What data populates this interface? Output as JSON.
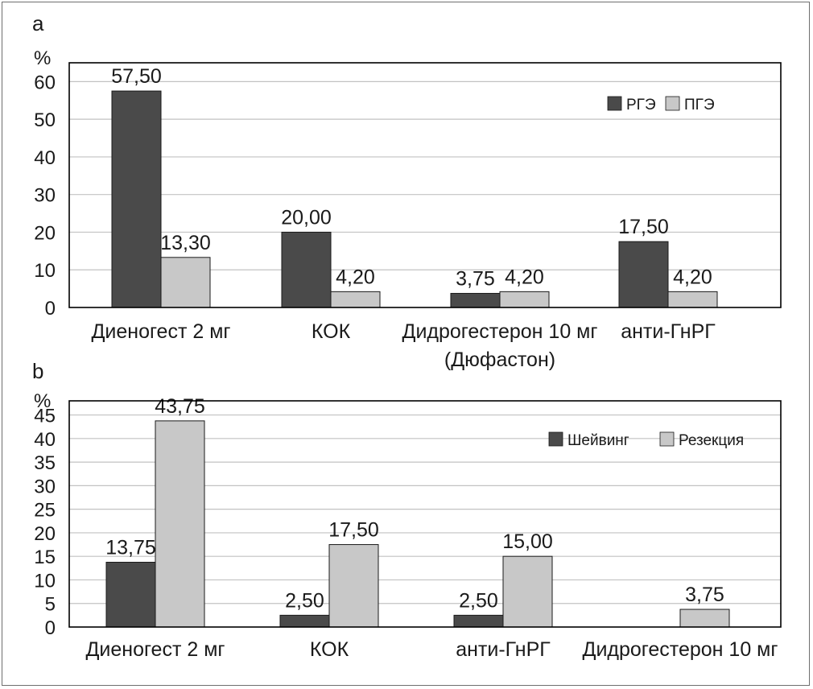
{
  "colors": {
    "dark": "#4a4a4a",
    "light": "#c8c8c8",
    "grid": "#c2c2c2",
    "axis": "#000000"
  },
  "chart_data": [
    {
      "panel_label": "a",
      "type": "bar",
      "unit": "%",
      "ylim": [
        0,
        65
      ],
      "yticks": [
        0,
        10,
        20,
        30,
        40,
        50,
        60
      ],
      "grid": true,
      "legend_position": "top-right",
      "categories": [
        "Диеногест 2 мг",
        "КОК",
        "Дидрогестерон 10 мг\n(Дюфастон)",
        "анти-ГнРГ"
      ],
      "series": [
        {
          "name": "РГЭ",
          "values": [
            57.5,
            20.0,
            3.75,
            17.5
          ],
          "labels": [
            "57,50",
            "20,00",
            "3,75",
            "17,50"
          ]
        },
        {
          "name": "ПГЭ",
          "values": [
            13.3,
            4.2,
            4.2,
            4.2
          ],
          "labels": [
            "13,30",
            "4,20",
            "4,20",
            "4,20"
          ]
        }
      ]
    },
    {
      "panel_label": "b",
      "type": "bar",
      "unit": "%",
      "ylim": [
        0,
        48
      ],
      "yticks": [
        0,
        5,
        10,
        15,
        20,
        25,
        30,
        35,
        40,
        45
      ],
      "grid": true,
      "legend_position": "top-right",
      "categories": [
        "Диеногест 2 мг",
        "КОК",
        "анти-ГнРГ",
        "Дидрогестерон 10 мг"
      ],
      "series": [
        {
          "name": "Шейвинг",
          "values": [
            13.75,
            2.5,
            2.5,
            null
          ],
          "labels": [
            "13,75",
            "2,50",
            "2,50",
            ""
          ]
        },
        {
          "name": "Резекция",
          "values": [
            43.75,
            17.5,
            15.0,
            3.75
          ],
          "labels": [
            "43,75",
            "17,50",
            "15,00",
            "3,75"
          ]
        }
      ]
    }
  ]
}
